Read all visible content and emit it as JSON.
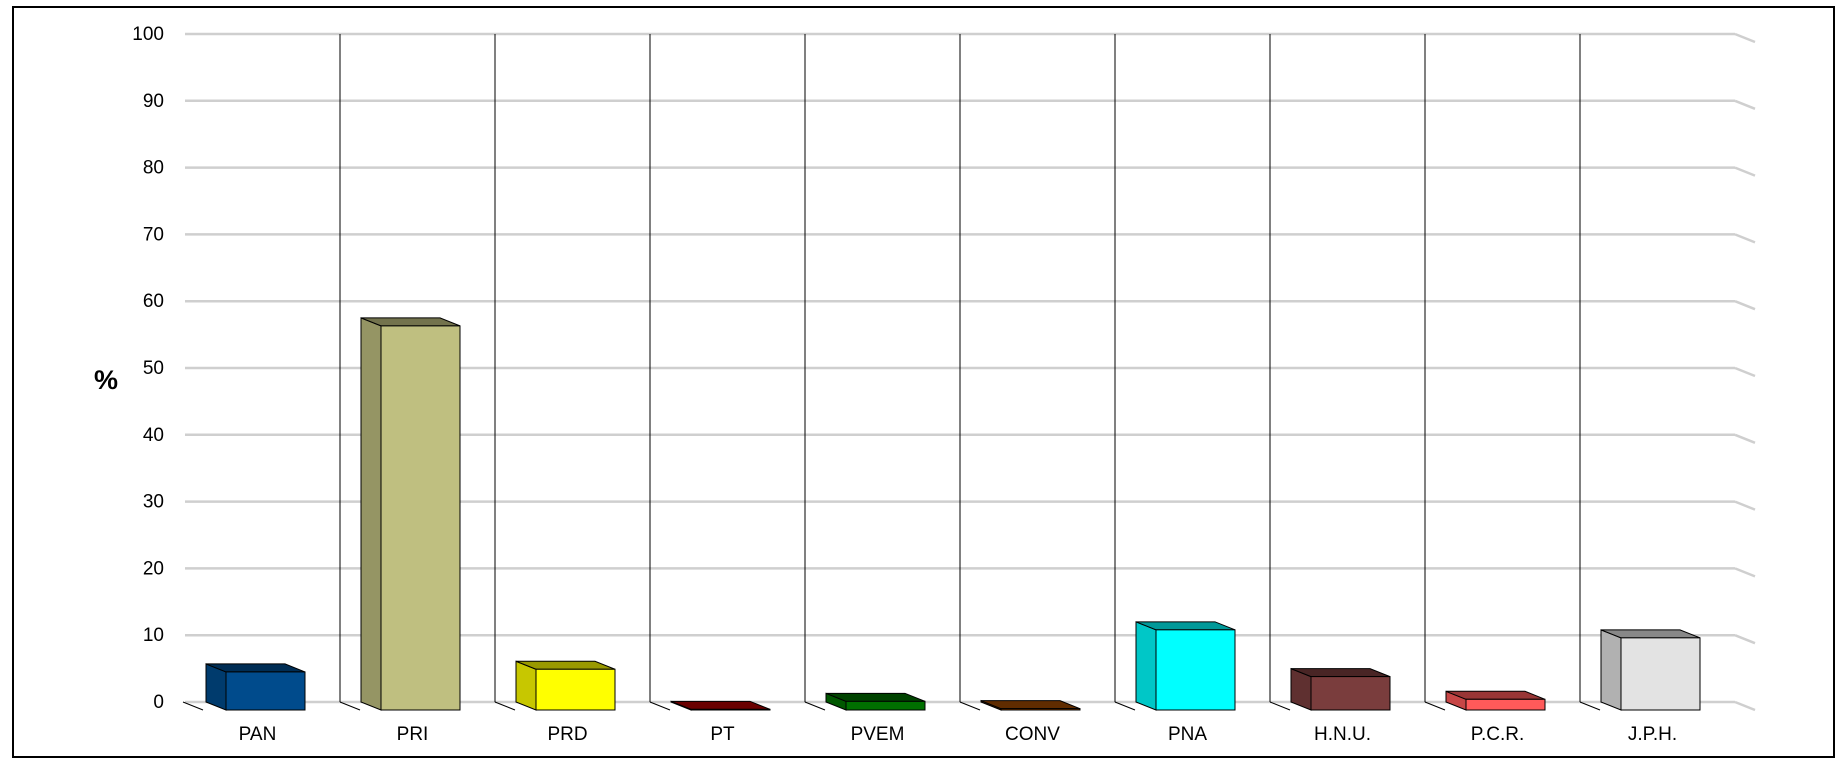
{
  "chart_data": {
    "type": "bar",
    "title": "",
    "xlabel": "",
    "ylabel": "%",
    "ylim": [
      0,
      100
    ],
    "yticks": [
      0,
      10,
      20,
      30,
      40,
      50,
      60,
      70,
      80,
      90,
      100
    ],
    "grid": true,
    "legend": "none",
    "categories": [
      "PAN",
      "PRI",
      "PRD",
      "PT",
      "PVEM",
      "CONV",
      "PNA",
      "H.N.U.",
      "P.C.R.",
      "J.P.H."
    ],
    "values": [
      5.7,
      57.5,
      6.1,
      0.1,
      1.3,
      0.2,
      12.0,
      5.0,
      1.6,
      10.8
    ],
    "colors": [
      "#004b8c",
      "#bfbf80",
      "#ffff00",
      "#b00000",
      "#007000",
      "#a04a00",
      "#00ffff",
      "#7a3d3d",
      "#ff5a5a",
      "#e3e3e3"
    ]
  }
}
